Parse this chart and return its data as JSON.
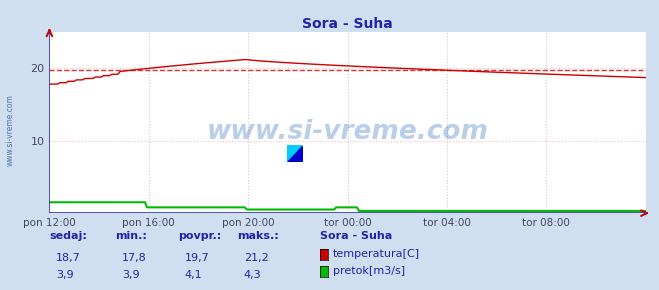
{
  "title": "Sora - Suha",
  "title_color": "#2222aa",
  "bg_color": "#d0dff0",
  "plot_bg_color": "#ffffff",
  "x_ticks_labels": [
    "pon 12:00",
    "pon 16:00",
    "pon 20:00",
    "tor 00:00",
    "tor 04:00",
    "tor 08:00"
  ],
  "x_ticks_pos": [
    0.0,
    0.1667,
    0.3333,
    0.5,
    0.6667,
    0.8333
  ],
  "ylim": [
    0,
    25
  ],
  "yticks": [
    10,
    20
  ],
  "grid_color_h": "#ffbbbb",
  "grid_color_v": "#cccccc",
  "temp_color": "#cc0000",
  "flow_color": "#00bb00",
  "avg_line_color": "#cc0000",
  "avg_temp": 19.7,
  "watermark_text": "www.si-vreme.com",
  "watermark_color": "#1a5fb4",
  "watermark_alpha": 0.3,
  "left_label": "www.si-vreme.com",
  "left_label_color": "#3355aa",
  "axis_color": "#3333aa",
  "sedaj_temp": 18.7,
  "min_temp": 17.8,
  "povpr_temp": 19.7,
  "maks_temp": 21.2,
  "sedaj_flow": 3.9,
  "min_flow": 3.9,
  "povpr_flow": 4.1,
  "maks_flow": 4.3,
  "legend_title": "Sora - Suha",
  "legend_color": "#2222aa",
  "table_header_color": "#2222aa",
  "table_value_color": "#2222aa"
}
